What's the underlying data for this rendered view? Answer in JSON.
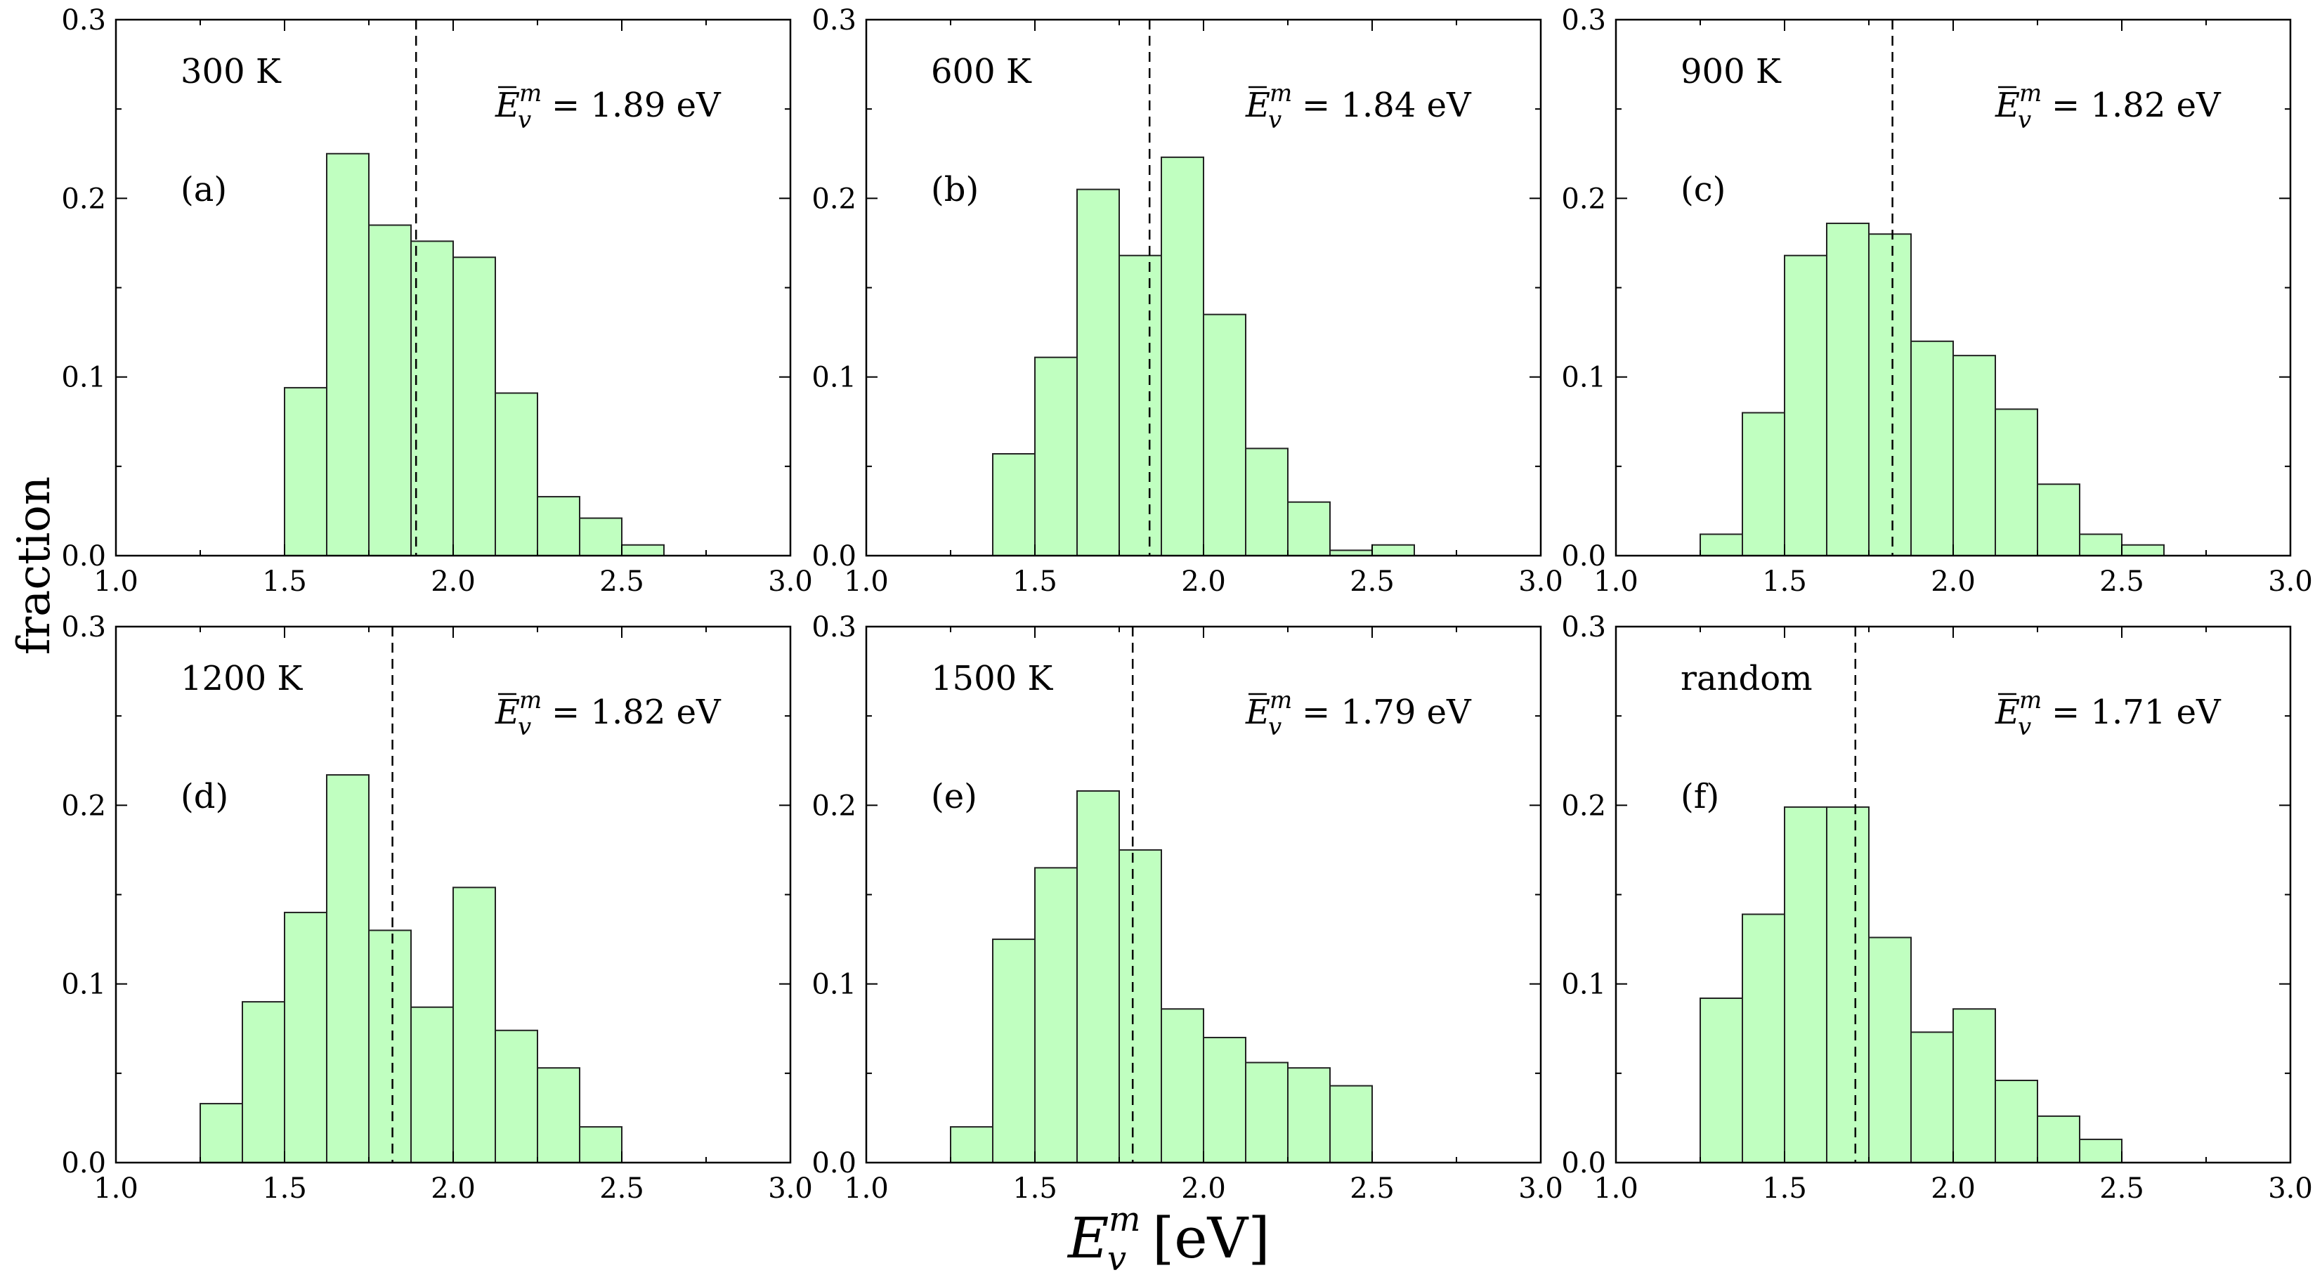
{
  "figure": {
    "ylabel": "fraction",
    "xlabel_main": "E",
    "xlabel_sup": "m",
    "xlabel_sub": "v",
    "xlabel_unit": "[eV]"
  },
  "style": {
    "bar_fill": "#c0ffc0",
    "bar_stroke": "#222222",
    "axis_color": "#000000"
  },
  "chart_data": [
    {
      "type": "bar",
      "id": "a",
      "panel": "(a)",
      "label": "300 K",
      "mean_text": "= 1.89 eV",
      "mean": 1.89,
      "bins": [
        1.5,
        1.625,
        1.75,
        1.875,
        2.0,
        2.125,
        2.25,
        2.375,
        2.5
      ],
      "bin_width": 0.125,
      "values": [
        0.094,
        0.225,
        0.185,
        0.176,
        0.167,
        0.091,
        0.033,
        0.021,
        0.006
      ],
      "xlim": [
        1.0,
        3.0
      ],
      "ylim": [
        0,
        0.3
      ],
      "xticks": [
        "1.0",
        "1.5",
        "2.0",
        "2.5",
        "3.0"
      ],
      "yticks": [
        "0.0",
        "0.1",
        "0.2",
        "0.3"
      ]
    },
    {
      "type": "bar",
      "id": "b",
      "panel": "(b)",
      "label": "600 K",
      "mean_text": "= 1.84 eV",
      "mean": 1.84,
      "bins": [
        1.375,
        1.5,
        1.625,
        1.75,
        1.875,
        2.0,
        2.125,
        2.25,
        2.375,
        2.5
      ],
      "bin_width": 0.125,
      "values": [
        0.057,
        0.111,
        0.205,
        0.168,
        0.223,
        0.135,
        0.06,
        0.03,
        0.003,
        0.006
      ],
      "xlim": [
        1.0,
        3.0
      ],
      "ylim": [
        0,
        0.3
      ],
      "xticks": [
        "1.0",
        "1.5",
        "2.0",
        "2.5",
        "3.0"
      ],
      "yticks": [
        "0.0",
        "0.1",
        "0.2",
        "0.3"
      ]
    },
    {
      "type": "bar",
      "id": "c",
      "panel": "(c)",
      "label": "900 K",
      "mean_text": "= 1.82 eV",
      "mean": 1.82,
      "bins": [
        1.25,
        1.375,
        1.5,
        1.625,
        1.75,
        1.875,
        2.0,
        2.125,
        2.25,
        2.375,
        2.5
      ],
      "bin_width": 0.125,
      "values": [
        0.012,
        0.08,
        0.168,
        0.186,
        0.18,
        0.12,
        0.112,
        0.082,
        0.04,
        0.012,
        0.006
      ],
      "xlim": [
        1.0,
        3.0
      ],
      "ylim": [
        0,
        0.3
      ],
      "xticks": [
        "1.0",
        "1.5",
        "2.0",
        "2.5",
        "3.0"
      ],
      "yticks": [
        "0.0",
        "0.1",
        "0.2",
        "0.3"
      ]
    },
    {
      "type": "bar",
      "id": "d",
      "panel": "(d)",
      "label": "1200 K",
      "mean_text": "= 1.82 eV",
      "mean": 1.82,
      "bins": [
        1.25,
        1.375,
        1.5,
        1.625,
        1.75,
        1.875,
        2.0,
        2.125,
        2.25,
        2.375
      ],
      "bin_width": 0.125,
      "values": [
        0.033,
        0.09,
        0.14,
        0.217,
        0.13,
        0.087,
        0.154,
        0.074,
        0.053,
        0.02
      ],
      "xlim": [
        1.0,
        3.0
      ],
      "ylim": [
        0,
        0.3
      ],
      "xticks": [
        "1.0",
        "1.5",
        "2.0",
        "2.5",
        "3.0"
      ],
      "yticks": [
        "0.0",
        "0.1",
        "0.2",
        "0.3"
      ]
    },
    {
      "type": "bar",
      "id": "e",
      "panel": "(e)",
      "label": "1500 K",
      "mean_text": "= 1.79 eV",
      "mean": 1.79,
      "bins": [
        1.25,
        1.375,
        1.5,
        1.625,
        1.75,
        1.875,
        2.0,
        2.125,
        2.25,
        2.375
      ],
      "bin_width": 0.125,
      "values": [
        0.02,
        0.125,
        0.165,
        0.208,
        0.175,
        0.086,
        0.07,
        0.056,
        0.053,
        0.043
      ],
      "xlim": [
        1.0,
        3.0
      ],
      "ylim": [
        0,
        0.3
      ],
      "xticks": [
        "1.0",
        "1.5",
        "2.0",
        "2.5",
        "3.0"
      ],
      "yticks": [
        "0.0",
        "0.1",
        "0.2",
        "0.3"
      ]
    },
    {
      "type": "bar",
      "id": "f",
      "panel": "(f)",
      "label": "random",
      "mean_text": "= 1.71 eV",
      "mean": 1.71,
      "bins": [
        1.25,
        1.375,
        1.5,
        1.625,
        1.75,
        1.875,
        2.0,
        2.125,
        2.25,
        2.375
      ],
      "bin_width": 0.125,
      "values": [
        0.092,
        0.139,
        0.199,
        0.199,
        0.126,
        0.073,
        0.086,
        0.046,
        0.026,
        0.013
      ],
      "xlim": [
        1.0,
        3.0
      ],
      "ylim": [
        0,
        0.3
      ],
      "xticks": [
        "1.0",
        "1.5",
        "2.0",
        "2.5",
        "3.0"
      ],
      "yticks": [
        "0.0",
        "0.1",
        "0.2",
        "0.3"
      ]
    }
  ]
}
